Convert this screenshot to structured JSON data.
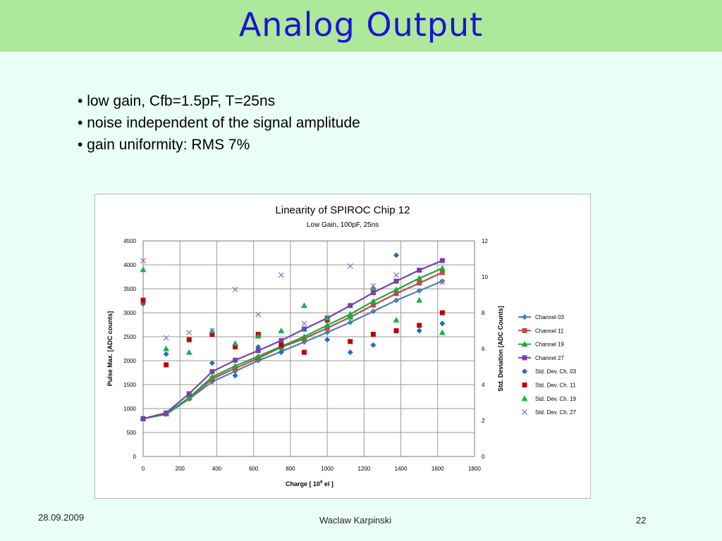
{
  "slide": {
    "title": "Analog Output",
    "bullets": [
      "low gain, Cfb=1.5pF, T=25ns",
      "noise independent of the signal amplitude",
      "gain uniformity:    RMS   7%"
    ],
    "footer": {
      "date": "28.09.2009",
      "author": "Waclaw Karpinski",
      "page": "22"
    }
  },
  "chart_data": {
    "type": "line",
    "title": "Linearity of SPIROC Chip 12",
    "subtitle": "Low Gain, 100pF, 25ns",
    "xlabel_parts": [
      "Charge [ 10",
      "6",
      " el ]"
    ],
    "ylabel": "Pulse Max.  [ADC counts]",
    "y2label": "Std.  Deviation  [ADC Counts]",
    "xlim": [
      0,
      1800
    ],
    "ylim": [
      0,
      4500
    ],
    "y2lim": [
      0,
      12
    ],
    "xticks": [
      0,
      200,
      400,
      600,
      800,
      1000,
      1200,
      1400,
      1600,
      1800
    ],
    "yticks": [
      0,
      500,
      1000,
      1500,
      2000,
      2500,
      3000,
      3500,
      4000,
      4500
    ],
    "y2ticks": [
      0,
      2,
      4,
      6,
      8,
      10,
      12
    ],
    "grid": true,
    "legend_position": "right",
    "x": [
      0,
      125,
      250,
      375,
      500,
      625,
      750,
      875,
      1000,
      1125,
      1250,
      1375,
      1500,
      1625
    ],
    "series": [
      {
        "name": "Channel 03",
        "axis": "left",
        "style": "line",
        "marker": "diamond",
        "color": "#4a7ebb",
        "values": [
          790,
          880,
          1200,
          1560,
          1780,
          2000,
          2190,
          2390,
          2590,
          2800,
          3030,
          3260,
          3460,
          3660
        ]
      },
      {
        "name": "Channel 11",
        "axis": "left",
        "style": "line",
        "marker": "square",
        "color": "#be4b48",
        "values": [
          790,
          890,
          1220,
          1620,
          1840,
          2050,
          2280,
          2460,
          2680,
          2910,
          3160,
          3400,
          3620,
          3840
        ]
      },
      {
        "name": "Channel 19",
        "axis": "left",
        "style": "line",
        "marker": "triangle",
        "color": "#1aaa3a",
        "values": [
          790,
          890,
          1230,
          1660,
          1890,
          2090,
          2300,
          2500,
          2740,
          2970,
          3240,
          3480,
          3720,
          3930
        ]
      },
      {
        "name": "Channel 27",
        "axis": "left",
        "style": "line",
        "marker": "square",
        "color": "#7d3fa8",
        "values": [
          790,
          910,
          1310,
          1770,
          2010,
          2210,
          2420,
          2660,
          2890,
          3150,
          3420,
          3660,
          3890,
          4090
        ]
      },
      {
        "name": "Std. Dev. Ch. 03",
        "axis": "right",
        "style": "points",
        "marker": "diamond",
        "color": "#1f6fbf",
        "values": [
          8.5,
          5.7,
          null,
          5.2,
          4.5,
          6.1,
          5.8,
          7.1,
          6.5,
          5.8,
          6.2,
          11.2,
          7.0,
          7.4
        ]
      },
      {
        "name": "Std. Dev. Ch. 11",
        "axis": "right",
        "style": "points",
        "marker": "square",
        "color": "#c00000",
        "values": [
          8.7,
          5.1,
          6.5,
          6.8,
          6.1,
          6.8,
          6.2,
          5.8,
          7.6,
          6.4,
          6.8,
          7.0,
          7.3,
          8.0
        ]
      },
      {
        "name": "Std. Dev. Ch. 19",
        "axis": "right",
        "style": "points",
        "marker": "triangle",
        "color": "#19b04a",
        "values": [
          10.4,
          6.0,
          5.8,
          7.0,
          6.3,
          6.7,
          7.0,
          8.4,
          7.7,
          7.8,
          9.4,
          7.6,
          8.7,
          6.9
        ]
      },
      {
        "name": "Std. Dev. Ch. 27",
        "axis": "right",
        "style": "points",
        "marker": "cross",
        "color": "#8a6fc0",
        "values": [
          10.9,
          6.6,
          6.9,
          7.0,
          9.3,
          7.9,
          10.1,
          7.4,
          null,
          10.6,
          9.5,
          10.1,
          null,
          9.7
        ]
      }
    ]
  }
}
